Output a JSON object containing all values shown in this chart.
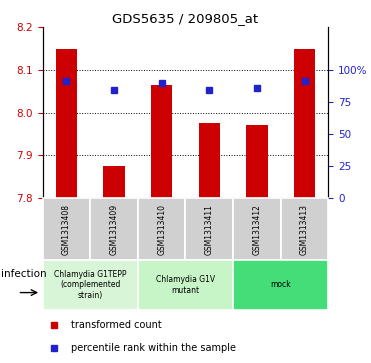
{
  "title": "GDS5635 / 209805_at",
  "samples": [
    "GSM1313408",
    "GSM1313409",
    "GSM1313410",
    "GSM1313411",
    "GSM1313412",
    "GSM1313413"
  ],
  "bar_values": [
    8.15,
    7.875,
    8.065,
    7.975,
    7.97,
    8.15
  ],
  "bar_bottom": 7.8,
  "percentile_values": [
    8.075,
    8.053,
    8.07,
    8.053,
    8.058,
    8.075
  ],
  "ylim": [
    7.8,
    8.2
  ],
  "yticks_left": [
    7.8,
    7.9,
    8.0,
    8.1,
    8.2
  ],
  "yticks_right_labels": [
    "0",
    "25",
    "50",
    "75",
    "100%"
  ],
  "yticks_right_vals": [
    7.8,
    7.875,
    7.95,
    8.025,
    8.1
  ],
  "bar_color": "#cc0000",
  "dot_color": "#2222cc",
  "grid_color": "#000000",
  "groups": [
    {
      "label": "Chlamydia G1TEPP\n(complemented\nstrain)",
      "start": 0,
      "end": 1,
      "color": "#d8f5d8"
    },
    {
      "label": "Chlamydia G1V\nmutant",
      "start": 2,
      "end": 3,
      "color": "#c8f5c8"
    },
    {
      "label": "mock",
      "start": 4,
      "end": 5,
      "color": "#44dd77"
    }
  ],
  "ylabel_left_color": "#cc0000",
  "ylabel_right_color": "#2222cc",
  "legend_items": [
    {
      "color": "#cc0000",
      "label": "transformed count"
    },
    {
      "color": "#2222cc",
      "label": "percentile rank within the sample"
    }
  ],
  "infection_label": "infection",
  "sample_box_color": "#d0d0d0",
  "bar_width": 0.45
}
